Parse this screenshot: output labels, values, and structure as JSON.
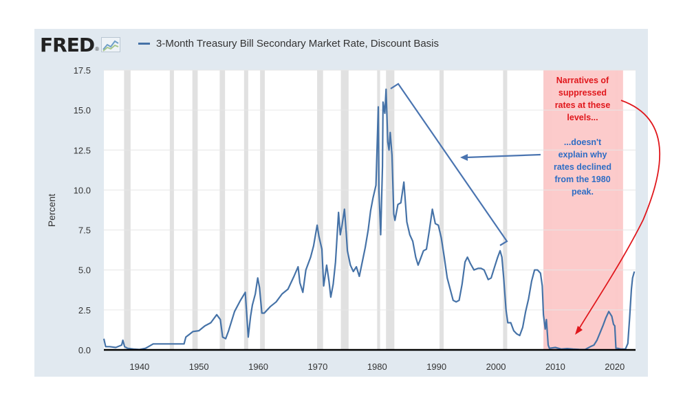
{
  "header": {
    "logo_text": "FRED",
    "logo_mark": "®",
    "logo_icon": "fred-chart-icon",
    "series_label": "3-Month Treasury Bill Secondary Market Rate, Discount Basis"
  },
  "chart_data": {
    "type": "line",
    "ylabel": "Percent",
    "xlabel": "",
    "ylim": [
      0,
      17.5
    ],
    "xlim": [
      1934,
      2023.5
    ],
    "grid": true,
    "yticks": [
      {
        "value": 0,
        "label": "0.0"
      },
      {
        "value": 2.5,
        "label": "2.5"
      },
      {
        "value": 5,
        "label": "5.0"
      },
      {
        "value": 7.5,
        "label": "7.5"
      },
      {
        "value": 10,
        "label": "10.0"
      },
      {
        "value": 12.5,
        "label": "12.5"
      },
      {
        "value": 15,
        "label": "15.0"
      },
      {
        "value": 17.5,
        "label": "17.5"
      }
    ],
    "xticks": [
      {
        "value": 1940,
        "label": "1940"
      },
      {
        "value": 1950,
        "label": "1950"
      },
      {
        "value": 1960,
        "label": "1960"
      },
      {
        "value": 1970,
        "label": "1970"
      },
      {
        "value": 1980,
        "label": "1980"
      },
      {
        "value": 1990,
        "label": "1990"
      },
      {
        "value": 2000,
        "label": "2000"
      },
      {
        "value": 2010,
        "label": "2010"
      },
      {
        "value": 2020,
        "label": "2020"
      }
    ],
    "recessions": [
      [
        1937.4,
        1938.5
      ],
      [
        1945.1,
        1945.8
      ],
      [
        1948.9,
        1949.8
      ],
      [
        1953.5,
        1954.4
      ],
      [
        1957.6,
        1958.3
      ],
      [
        1960.3,
        1961.1
      ],
      [
        1969.9,
        1970.9
      ],
      [
        1973.9,
        1975.2
      ],
      [
        1980.0,
        1980.5
      ],
      [
        1981.5,
        1982.9
      ],
      [
        1990.5,
        1991.2
      ],
      [
        2001.2,
        2001.9
      ],
      [
        2008.0,
        2009.5
      ],
      [
        2020.1,
        2020.3
      ]
    ],
    "series": [
      {
        "color": "#4572a7",
        "points": [
          [
            1934.0,
            0.7
          ],
          [
            1934.3,
            0.2
          ],
          [
            1935.0,
            0.2
          ],
          [
            1936.0,
            0.15
          ],
          [
            1937.0,
            0.3
          ],
          [
            1937.2,
            0.6
          ],
          [
            1937.5,
            0.2
          ],
          [
            1938.0,
            0.1
          ],
          [
            1939.0,
            0.05
          ],
          [
            1940.0,
            0.02
          ],
          [
            1941.0,
            0.1
          ],
          [
            1941.5,
            0.2
          ],
          [
            1942.3,
            0.375
          ],
          [
            1945.0,
            0.375
          ],
          [
            1947.5,
            0.375
          ],
          [
            1947.8,
            0.8
          ],
          [
            1948.5,
            1.0
          ],
          [
            1949.0,
            1.15
          ],
          [
            1950.0,
            1.2
          ],
          [
            1951.0,
            1.5
          ],
          [
            1952.0,
            1.7
          ],
          [
            1953.0,
            2.2
          ],
          [
            1953.6,
            1.9
          ],
          [
            1954.0,
            0.8
          ],
          [
            1954.5,
            0.7
          ],
          [
            1955.0,
            1.2
          ],
          [
            1955.5,
            1.8
          ],
          [
            1956.0,
            2.4
          ],
          [
            1957.0,
            3.1
          ],
          [
            1957.8,
            3.6
          ],
          [
            1958.3,
            0.8
          ],
          [
            1958.7,
            2.1
          ],
          [
            1959.0,
            2.8
          ],
          [
            1959.5,
            3.5
          ],
          [
            1959.9,
            4.5
          ],
          [
            1960.2,
            3.9
          ],
          [
            1960.6,
            2.3
          ],
          [
            1961.0,
            2.3
          ],
          [
            1962.0,
            2.7
          ],
          [
            1963.0,
            3.0
          ],
          [
            1964.0,
            3.5
          ],
          [
            1965.0,
            3.8
          ],
          [
            1966.0,
            4.6
          ],
          [
            1966.7,
            5.2
          ],
          [
            1967.0,
            4.2
          ],
          [
            1967.5,
            3.6
          ],
          [
            1968.0,
            5.0
          ],
          [
            1968.8,
            5.8
          ],
          [
            1969.3,
            6.5
          ],
          [
            1969.9,
            7.8
          ],
          [
            1970.2,
            7.1
          ],
          [
            1970.7,
            6.3
          ],
          [
            1971.0,
            4.0
          ],
          [
            1971.5,
            5.3
          ],
          [
            1971.9,
            4.3
          ],
          [
            1972.2,
            3.3
          ],
          [
            1972.6,
            4.1
          ],
          [
            1973.0,
            5.5
          ],
          [
            1973.5,
            8.6
          ],
          [
            1973.8,
            7.2
          ],
          [
            1974.1,
            7.8
          ],
          [
            1974.5,
            8.8
          ],
          [
            1974.8,
            7.3
          ],
          [
            1975.0,
            6.2
          ],
          [
            1975.5,
            5.3
          ],
          [
            1976.0,
            4.9
          ],
          [
            1976.5,
            5.2
          ],
          [
            1977.0,
            4.6
          ],
          [
            1977.5,
            5.5
          ],
          [
            1978.0,
            6.4
          ],
          [
            1978.5,
            7.5
          ],
          [
            1978.9,
            8.7
          ],
          [
            1979.3,
            9.5
          ],
          [
            1979.8,
            10.3
          ],
          [
            1980.2,
            15.2
          ],
          [
            1980.3,
            10.0
          ],
          [
            1980.6,
            7.2
          ],
          [
            1980.9,
            11.5
          ],
          [
            1981.0,
            15.5
          ],
          [
            1981.3,
            14.8
          ],
          [
            1981.5,
            16.3
          ],
          [
            1981.8,
            13.0
          ],
          [
            1982.0,
            12.5
          ],
          [
            1982.2,
            13.6
          ],
          [
            1982.5,
            12.2
          ],
          [
            1982.8,
            8.5
          ],
          [
            1983.0,
            8.1
          ],
          [
            1983.5,
            9.1
          ],
          [
            1984.0,
            9.2
          ],
          [
            1984.5,
            10.5
          ],
          [
            1984.8,
            9.0
          ],
          [
            1985.0,
            8.0
          ],
          [
            1985.5,
            7.2
          ],
          [
            1986.0,
            6.8
          ],
          [
            1986.5,
            5.8
          ],
          [
            1986.9,
            5.3
          ],
          [
            1987.2,
            5.6
          ],
          [
            1987.8,
            6.2
          ],
          [
            1988.3,
            6.3
          ],
          [
            1988.8,
            7.5
          ],
          [
            1989.3,
            8.8
          ],
          [
            1989.8,
            7.9
          ],
          [
            1990.3,
            7.8
          ],
          [
            1990.8,
            7.0
          ],
          [
            1991.3,
            5.8
          ],
          [
            1991.8,
            4.5
          ],
          [
            1992.3,
            3.8
          ],
          [
            1992.8,
            3.1
          ],
          [
            1993.3,
            3.0
          ],
          [
            1993.8,
            3.1
          ],
          [
            1994.3,
            4.1
          ],
          [
            1994.8,
            5.5
          ],
          [
            1995.2,
            5.8
          ],
          [
            1995.7,
            5.4
          ],
          [
            1996.3,
            5.0
          ],
          [
            1997.0,
            5.1
          ],
          [
            1997.5,
            5.1
          ],
          [
            1998.0,
            5.0
          ],
          [
            1998.7,
            4.4
          ],
          [
            1999.2,
            4.5
          ],
          [
            1999.7,
            5.1
          ],
          [
            2000.3,
            5.8
          ],
          [
            2000.7,
            6.2
          ],
          [
            2001.0,
            5.8
          ],
          [
            2001.3,
            4.5
          ],
          [
            2001.7,
            2.5
          ],
          [
            2002.0,
            1.7
          ],
          [
            2002.5,
            1.7
          ],
          [
            2003.0,
            1.2
          ],
          [
            2003.5,
            1.0
          ],
          [
            2004.0,
            0.9
          ],
          [
            2004.5,
            1.4
          ],
          [
            2005.0,
            2.4
          ],
          [
            2005.5,
            3.2
          ],
          [
            2006.0,
            4.3
          ],
          [
            2006.5,
            5.0
          ],
          [
            2007.0,
            5.0
          ],
          [
            2007.5,
            4.8
          ],
          [
            2007.8,
            4.0
          ],
          [
            2008.0,
            2.2
          ],
          [
            2008.3,
            1.3
          ],
          [
            2008.5,
            1.9
          ],
          [
            2008.8,
            0.3
          ],
          [
            2009.0,
            0.1
          ],
          [
            2010.0,
            0.15
          ],
          [
            2011.0,
            0.05
          ],
          [
            2012.0,
            0.08
          ],
          [
            2013.0,
            0.05
          ],
          [
            2014.0,
            0.03
          ],
          [
            2015.0,
            0.02
          ],
          [
            2015.9,
            0.2
          ],
          [
            2016.5,
            0.3
          ],
          [
            2017.0,
            0.6
          ],
          [
            2017.5,
            1.05
          ],
          [
            2018.0,
            1.5
          ],
          [
            2018.5,
            2.0
          ],
          [
            2019.0,
            2.4
          ],
          [
            2019.5,
            2.1
          ],
          [
            2019.8,
            1.6
          ],
          [
            2020.0,
            1.5
          ],
          [
            2020.2,
            0.1
          ],
          [
            2020.5,
            0.1
          ],
          [
            2021.0,
            0.05
          ],
          [
            2021.8,
            0.05
          ],
          [
            2022.2,
            0.4
          ],
          [
            2022.5,
            2.0
          ],
          [
            2022.8,
            3.8
          ],
          [
            2023.0,
            4.5
          ],
          [
            2023.3,
            4.9
          ]
        ]
      }
    ],
    "annotations": {
      "highlight_region": {
        "x0": 2008.0,
        "x1": 2021.4,
        "color": "#fcc8c8"
      },
      "red_text_lines": [
        "Narratives of",
        "suppressed",
        "rates at these",
        "levels..."
      ],
      "blue_text_lines": [
        "...doesn't",
        "explain why",
        "rates declined",
        "from the 1980",
        "peak."
      ],
      "red_color": "#e0171c",
      "blue_color": "#2e6dc4"
    }
  }
}
